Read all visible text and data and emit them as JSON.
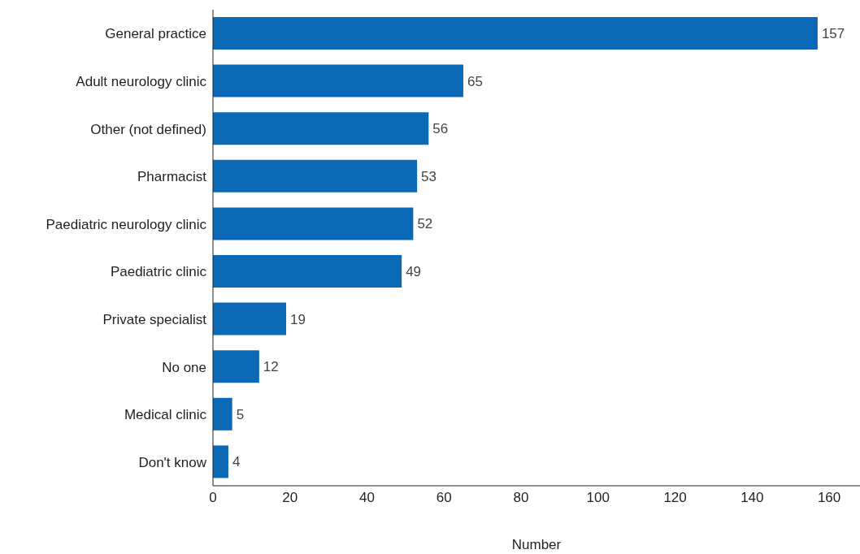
{
  "chart_data": {
    "type": "bar",
    "orientation": "horizontal",
    "xlabel": "Number",
    "categories": [
      "General practice",
      "Adult neurology clinic",
      "Other (not defined)",
      "Pharmacist",
      "Paediatric neurology clinic",
      "Paediatric clinic",
      "Private specialist",
      "No one",
      "Medical clinic",
      "Don't know"
    ],
    "values": [
      157,
      65,
      56,
      53,
      52,
      49,
      19,
      12,
      5,
      4
    ],
    "color": "#0b69b5",
    "xlim": [
      0,
      168
    ],
    "xticks": [
      0,
      20,
      40,
      60,
      80,
      100,
      120,
      140,
      160
    ],
    "data_labels": true,
    "grid": false
  }
}
